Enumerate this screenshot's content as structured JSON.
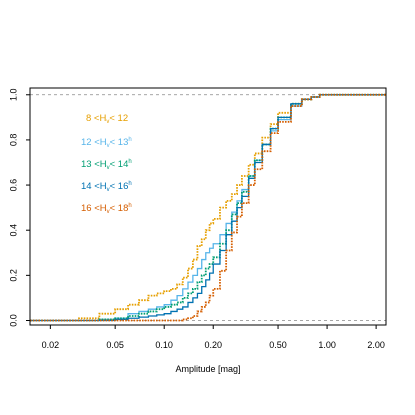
{
  "chart_data": {
    "type": "line",
    "title": "",
    "xlabel": "Amplitude [mag]",
    "ylabel": "",
    "xscale": "log",
    "xlim": [
      0.015,
      2.3
    ],
    "ylim": [
      -0.02,
      1.03
    ],
    "x_ticks": [
      0.02,
      0.05,
      0.1,
      0.2,
      0.5,
      1.0,
      2.0
    ],
    "x_tick_labels": [
      "0.02",
      "0.05",
      "0.10",
      "0.20",
      "0.50",
      "1.00",
      "2.00"
    ],
    "y_ticks": [
      0.0,
      0.2,
      0.4,
      0.6,
      0.8,
      1.0
    ],
    "y_tick_labels": [
      "0.0",
      "0.2",
      "0.4",
      "0.6",
      "0.8",
      "1.0"
    ],
    "reference_lines": [
      0.0,
      1.0
    ],
    "grid": false,
    "legend_position": "top-left",
    "series": [
      {
        "name": "8 <H_v< 12",
        "legend": {
          "pre": "8 <H",
          "sub": "v",
          "mid": "< 12",
          "sup": ""
        },
        "color": "#E69F00",
        "style": "dotted",
        "x": [
          0.015,
          0.03,
          0.04,
          0.05,
          0.06,
          0.07,
          0.08,
          0.09,
          0.1,
          0.11,
          0.12,
          0.13,
          0.14,
          0.15,
          0.16,
          0.17,
          0.18,
          0.19,
          0.2,
          0.22,
          0.24,
          0.26,
          0.28,
          0.3,
          0.33,
          0.36,
          0.4,
          0.45,
          0.5,
          0.6,
          0.7,
          0.8,
          0.9,
          1.0,
          1.2,
          1.5,
          2.3
        ],
        "y": [
          0.0,
          0.01,
          0.03,
          0.05,
          0.07,
          0.09,
          0.11,
          0.12,
          0.13,
          0.14,
          0.16,
          0.19,
          0.23,
          0.27,
          0.33,
          0.36,
          0.4,
          0.43,
          0.45,
          0.5,
          0.53,
          0.56,
          0.6,
          0.64,
          0.69,
          0.74,
          0.81,
          0.87,
          0.92,
          0.96,
          0.98,
          0.99,
          1.0,
          1.0,
          1.0,
          1.0,
          1.0
        ]
      },
      {
        "name": "12 <H_v< 13^h",
        "legend": {
          "pre": "12 <H",
          "sub": "v",
          "mid": "< 13",
          "sup": "h"
        },
        "color": "#56B4E9",
        "style": "solid",
        "x": [
          0.015,
          0.03,
          0.04,
          0.05,
          0.06,
          0.07,
          0.08,
          0.09,
          0.1,
          0.11,
          0.12,
          0.13,
          0.14,
          0.15,
          0.16,
          0.17,
          0.18,
          0.19,
          0.2,
          0.22,
          0.24,
          0.26,
          0.28,
          0.3,
          0.33,
          0.36,
          0.4,
          0.45,
          0.5,
          0.6,
          0.7,
          0.8,
          0.9,
          1.0,
          1.2,
          1.5,
          2.3
        ],
        "y": [
          0.0,
          0.0,
          0.005,
          0.01,
          0.03,
          0.04,
          0.05,
          0.06,
          0.07,
          0.09,
          0.11,
          0.14,
          0.17,
          0.2,
          0.23,
          0.27,
          0.3,
          0.32,
          0.34,
          0.38,
          0.43,
          0.48,
          0.53,
          0.58,
          0.64,
          0.71,
          0.78,
          0.84,
          0.89,
          0.95,
          0.98,
          0.99,
          1.0,
          1.0,
          1.0,
          1.0,
          1.0
        ]
      },
      {
        "name": "13 <H_v< 14^h",
        "legend": {
          "pre": "13 <H",
          "sub": "v",
          "mid": "< 14",
          "sup": "h"
        },
        "color": "#009E73",
        "style": "dotted",
        "x": [
          0.015,
          0.03,
          0.04,
          0.05,
          0.06,
          0.07,
          0.08,
          0.09,
          0.1,
          0.11,
          0.12,
          0.13,
          0.14,
          0.15,
          0.16,
          0.17,
          0.18,
          0.19,
          0.2,
          0.22,
          0.24,
          0.26,
          0.28,
          0.3,
          0.33,
          0.36,
          0.4,
          0.45,
          0.5,
          0.6,
          0.7,
          0.8,
          0.9,
          1.0,
          1.2,
          1.5,
          2.3
        ],
        "y": [
          0.0,
          0.0,
          0.005,
          0.01,
          0.02,
          0.03,
          0.04,
          0.05,
          0.06,
          0.07,
          0.08,
          0.1,
          0.12,
          0.14,
          0.17,
          0.2,
          0.23,
          0.25,
          0.28,
          0.34,
          0.4,
          0.47,
          0.52,
          0.57,
          0.64,
          0.71,
          0.78,
          0.85,
          0.9,
          0.96,
          0.98,
          0.99,
          1.0,
          1.0,
          1.0,
          1.0,
          1.0
        ]
      },
      {
        "name": "14 <H_v< 16^h",
        "legend": {
          "pre": "14 <H",
          "sub": "v",
          "mid": "< 16",
          "sup": "h"
        },
        "color": "#0072B2",
        "style": "solid",
        "x": [
          0.015,
          0.03,
          0.04,
          0.05,
          0.06,
          0.07,
          0.08,
          0.09,
          0.1,
          0.11,
          0.12,
          0.13,
          0.14,
          0.15,
          0.16,
          0.17,
          0.18,
          0.19,
          0.2,
          0.22,
          0.24,
          0.26,
          0.28,
          0.3,
          0.33,
          0.36,
          0.4,
          0.45,
          0.5,
          0.6,
          0.7,
          0.8,
          0.9,
          1.0,
          1.2,
          1.5,
          2.3
        ],
        "y": [
          0.0,
          0.0,
          0.0,
          0.005,
          0.01,
          0.015,
          0.02,
          0.025,
          0.03,
          0.04,
          0.05,
          0.06,
          0.08,
          0.1,
          0.12,
          0.15,
          0.18,
          0.21,
          0.25,
          0.31,
          0.38,
          0.44,
          0.5,
          0.55,
          0.63,
          0.7,
          0.78,
          0.85,
          0.9,
          0.96,
          0.98,
          0.99,
          1.0,
          1.0,
          1.0,
          1.0,
          1.0
        ]
      },
      {
        "name": "16 <H_v< 18^h",
        "legend": {
          "pre": "16 <H",
          "sub": "v",
          "mid": "< 18",
          "sup": "h"
        },
        "color": "#D55E00",
        "style": "dotted",
        "x": [
          0.015,
          0.1,
          0.12,
          0.13,
          0.14,
          0.15,
          0.16,
          0.17,
          0.18,
          0.19,
          0.2,
          0.22,
          0.24,
          0.26,
          0.28,
          0.3,
          0.33,
          0.36,
          0.4,
          0.45,
          0.5,
          0.6,
          0.7,
          0.8,
          0.9,
          1.0,
          1.2,
          1.5,
          2.3
        ],
        "y": [
          0.0,
          0.0,
          0.0,
          0.005,
          0.01,
          0.02,
          0.04,
          0.06,
          0.08,
          0.11,
          0.14,
          0.22,
          0.31,
          0.39,
          0.46,
          0.52,
          0.6,
          0.67,
          0.75,
          0.83,
          0.88,
          0.95,
          0.98,
          0.99,
          1.0,
          1.0,
          1.0,
          1.0,
          1.0
        ]
      }
    ]
  }
}
